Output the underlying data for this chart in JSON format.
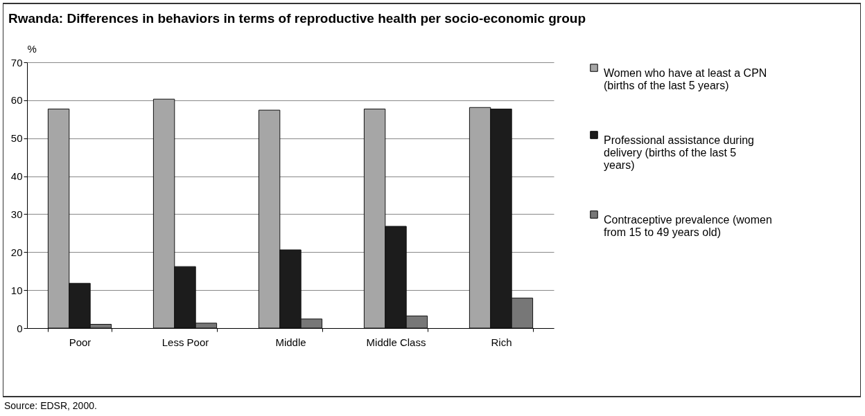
{
  "chart_data": {
    "type": "bar",
    "title": "Rwanda: Differences in behaviors in terms of reproductive health per socio-economic group",
    "ylabel": "%",
    "categories": [
      "Poor",
      "Less Poor",
      "Middle",
      "Middle Class",
      "Rich"
    ],
    "series": [
      {
        "name": "Women who have at least a CPN (births of the last 5 years)",
        "color": "#a6a6a6",
        "values": [
          57.7,
          60.3,
          57.4,
          57.7,
          58.1
        ]
      },
      {
        "name": "Professional assistance during delivery (births of the last 5 years)",
        "color": "#1c1c1c",
        "values": [
          11.8,
          16.2,
          20.6,
          26.8,
          57.7
        ]
      },
      {
        "name": "Contraceptive prevalence (women from 15 to 49 years old)",
        "color": "#777777",
        "values": [
          1.0,
          1.3,
          2.4,
          3.2,
          7.9
        ]
      }
    ],
    "ylim": [
      0,
      70
    ],
    "yticks": [
      0,
      10,
      20,
      30,
      40,
      50,
      60,
      70
    ],
    "grid": "y",
    "legend": "right",
    "annotations": [
      "Source: EDSR, 2000."
    ]
  }
}
